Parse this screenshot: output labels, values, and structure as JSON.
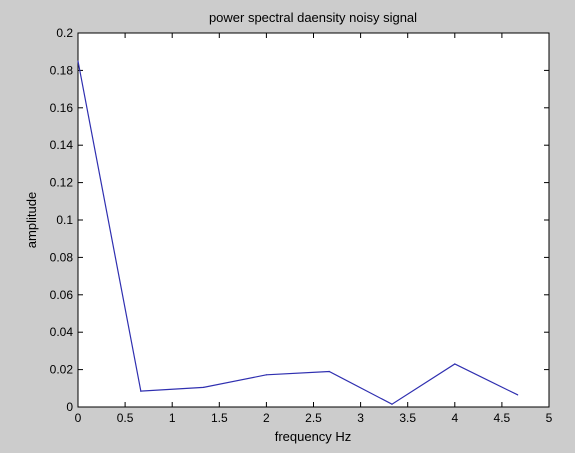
{
  "window": {
    "background": "#cccccc",
    "plot_background": "#ffffff",
    "line_color": "#2f2fb0"
  },
  "chart_data": {
    "type": "line",
    "title": "power spectral daensity noisy signal",
    "xlabel": "frequency Hz",
    "ylabel": "amplitude",
    "xlim": [
      0,
      5
    ],
    "ylim": [
      0,
      0.2
    ],
    "xticks": [
      0,
      0.5,
      1,
      1.5,
      2,
      2.5,
      3,
      3.5,
      4,
      4.5,
      5
    ],
    "xtick_labels": [
      "0",
      "0.5",
      "1",
      "1.5",
      "2",
      "2.5",
      "3",
      "3.5",
      "4",
      "4.5",
      "5"
    ],
    "yticks": [
      0,
      0.02,
      0.04,
      0.06,
      0.08,
      0.1,
      0.12,
      0.14,
      0.16,
      0.18,
      0.2
    ],
    "ytick_labels": [
      "0",
      "0.02",
      "0.04",
      "0.06",
      "0.08",
      "0.1",
      "0.12",
      "0.14",
      "0.16",
      "0.18",
      "0.2"
    ],
    "grid": false,
    "legend": null,
    "series": [
      {
        "x": [
          0,
          0.667,
          1.333,
          2.0,
          2.667,
          3.333,
          4.0,
          4.667
        ],
        "y": [
          0.185,
          0.0085,
          0.0105,
          0.0172,
          0.019,
          0.0015,
          0.023,
          0.0065
        ]
      }
    ]
  }
}
